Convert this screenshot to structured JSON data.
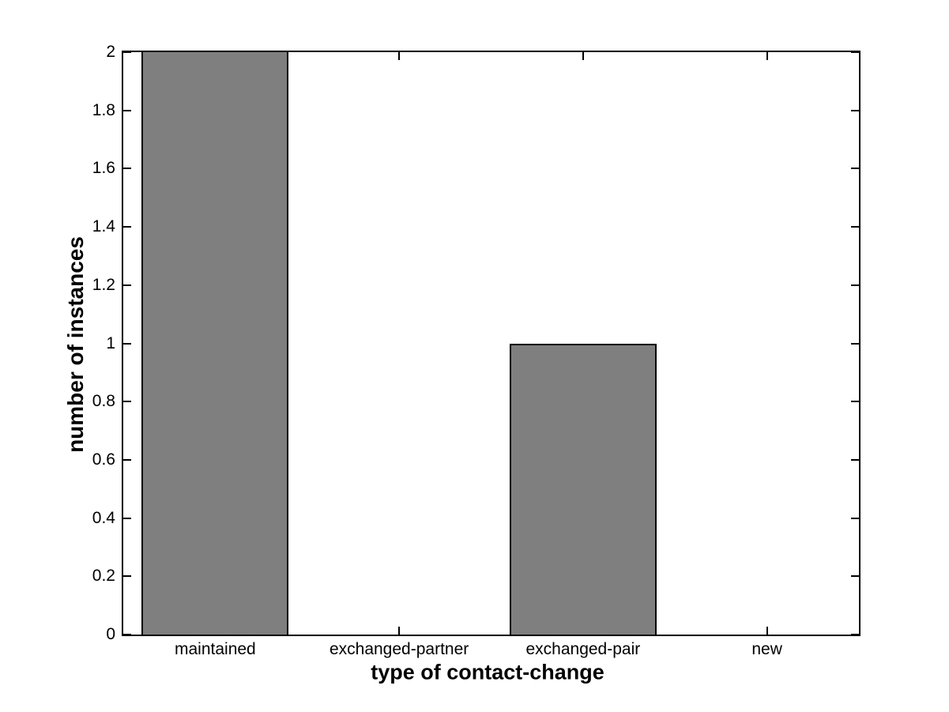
{
  "figure": {
    "background_color": "#ffffff",
    "axis_color": "#000000"
  },
  "chart_data": {
    "type": "bar",
    "title": "",
    "xlabel": "type of contact-change",
    "ylabel": "number of instances",
    "categories": [
      "maintained",
      "exchanged-partner",
      "exchanged-pair",
      "new"
    ],
    "values": [
      2,
      0,
      1,
      0
    ],
    "ylim": [
      0,
      2
    ],
    "yticks": [
      0,
      0.2,
      0.4,
      0.6,
      0.8,
      1,
      1.2,
      1.4,
      1.6,
      1.8,
      2
    ],
    "ytick_labels": [
      "0",
      "0.2",
      "0.4",
      "0.6",
      "0.8",
      "1",
      "1.2",
      "1.4",
      "1.6",
      "1.8",
      "2"
    ],
    "bar_width_fraction": 0.8,
    "bar_fill_color": "#7f7f7f",
    "bar_edge_color": "#000000",
    "axis_color": "#000000",
    "grid": false,
    "legend": null,
    "box": true,
    "tick_direction": "in"
  }
}
